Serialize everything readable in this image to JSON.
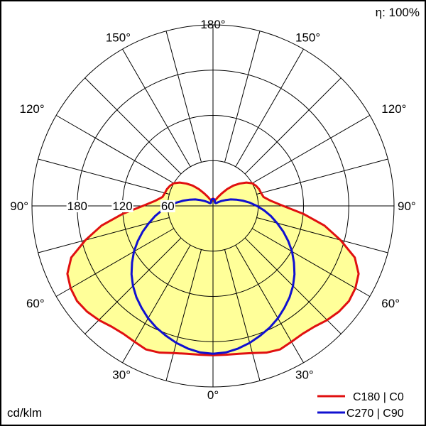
{
  "efficiency_label": "η: 100%",
  "unit_label": "cd/klm",
  "chart_data": {
    "type": "polar",
    "title": "",
    "angle_unit": "degrees",
    "angle_ticks": [
      {
        "text": "180°",
        "angle": 180,
        "side": "top"
      },
      {
        "text": "150°",
        "angle": 150,
        "side": "left"
      },
      {
        "text": "150°",
        "angle": 150,
        "side": "right"
      },
      {
        "text": "120°",
        "angle": 120,
        "side": "left"
      },
      {
        "text": "120°",
        "angle": 120,
        "side": "right"
      },
      {
        "text": "90°",
        "angle": 90,
        "side": "left"
      },
      {
        "text": "90°",
        "angle": 90,
        "side": "right"
      },
      {
        "text": "60°",
        "angle": 60,
        "side": "left"
      },
      {
        "text": "60°",
        "angle": 60,
        "side": "right"
      },
      {
        "text": "30°",
        "angle": 30,
        "side": "left"
      },
      {
        "text": "30°",
        "angle": 30,
        "side": "right"
      },
      {
        "text": "0°",
        "angle": 0,
        "side": "bottom"
      }
    ],
    "radial_ticks": [
      {
        "text": "60",
        "value": 60
      },
      {
        "text": "120",
        "value": 120
      },
      {
        "text": "180",
        "value": 180
      }
    ],
    "radial_max": 240,
    "grid": true,
    "legend_position": "bottom-right",
    "series": [
      {
        "name": "C180 | C0",
        "color": "#e01010",
        "fill": "#ffff99",
        "angles": [
          0,
          5,
          10,
          15,
          20,
          25,
          30,
          35,
          40,
          45,
          50,
          55,
          60,
          65,
          70,
          75,
          80,
          85,
          90,
          95,
          100,
          105,
          110,
          115,
          120,
          125,
          130,
          135,
          140,
          145,
          150,
          155,
          160,
          165,
          170,
          175,
          180
        ],
        "values": [
          198,
          198,
          199,
          202,
          207,
          210,
          208,
          207,
          209,
          214,
          218,
          220,
          218,
          213,
          200,
          175,
          150,
          120,
          93,
          77,
          68,
          66,
          65,
          63,
          60,
          54,
          46,
          38,
          29,
          20,
          14,
          10,
          8,
          7,
          8,
          9,
          10
        ]
      },
      {
        "name": "C270 | C90",
        "color": "#1010d0",
        "angles": [
          0,
          5,
          10,
          15,
          20,
          25,
          30,
          35,
          40,
          45,
          50,
          55,
          60,
          65,
          70,
          75,
          80,
          85,
          90,
          95,
          100,
          105,
          110,
          115,
          120,
          125,
          130,
          135,
          140,
          145,
          150,
          155,
          160,
          165,
          170,
          175,
          180
        ],
        "values": [
          196,
          195,
          192,
          188,
          183,
          178,
          172,
          165,
          158,
          150,
          141,
          131,
          121,
          110,
          99,
          88,
          78,
          68,
          58,
          49,
          40,
          32,
          25,
          18,
          13,
          9,
          6,
          5,
          5,
          5,
          5,
          6,
          7,
          8,
          9,
          9,
          9
        ]
      }
    ]
  }
}
